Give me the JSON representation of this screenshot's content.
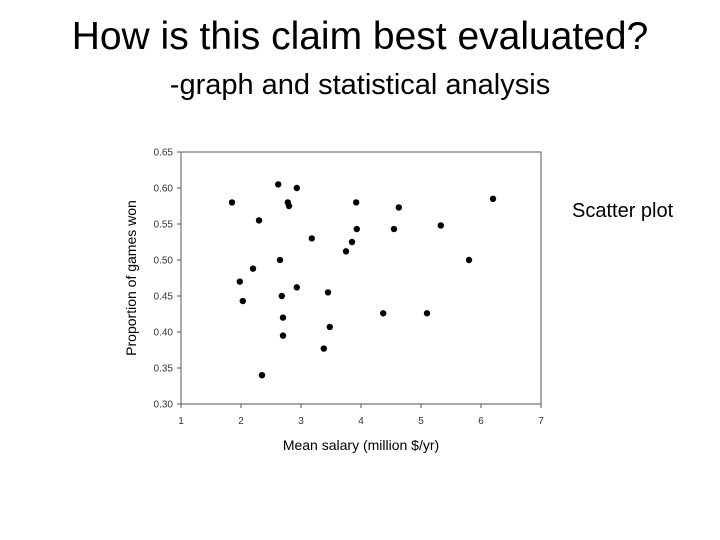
{
  "slide": {
    "title": "How is this claim best evaluated?",
    "subtitle": "-graph and statistical analysis",
    "note": "Scatter plot"
  },
  "chart_data": {
    "type": "scatter",
    "xlabel": "Mean salary (million $/yr)",
    "ylabel": "Proportion of games won",
    "xlim": [
      1,
      7
    ],
    "ylim": [
      0.3,
      0.65
    ],
    "xticks": [
      "1",
      "2",
      "3",
      "4",
      "5",
      "6",
      "7"
    ],
    "yticks": [
      "0.30",
      "0.35",
      "0.40",
      "0.45",
      "0.50",
      "0.55",
      "0.60",
      "0.65"
    ],
    "grid": false,
    "point_color": "#000000",
    "points": [
      {
        "x": 1.85,
        "y": 0.58
      },
      {
        "x": 1.98,
        "y": 0.47
      },
      {
        "x": 2.03,
        "y": 0.443
      },
      {
        "x": 2.2,
        "y": 0.488
      },
      {
        "x": 2.3,
        "y": 0.555
      },
      {
        "x": 2.35,
        "y": 0.34
      },
      {
        "x": 2.62,
        "y": 0.605
      },
      {
        "x": 2.65,
        "y": 0.5
      },
      {
        "x": 2.68,
        "y": 0.45
      },
      {
        "x": 2.7,
        "y": 0.42
      },
      {
        "x": 2.7,
        "y": 0.395
      },
      {
        "x": 2.78,
        "y": 0.58
      },
      {
        "x": 2.8,
        "y": 0.575
      },
      {
        "x": 2.93,
        "y": 0.6
      },
      {
        "x": 2.93,
        "y": 0.462
      },
      {
        "x": 3.18,
        "y": 0.53
      },
      {
        "x": 3.38,
        "y": 0.377
      },
      {
        "x": 3.45,
        "y": 0.455
      },
      {
        "x": 3.48,
        "y": 0.407
      },
      {
        "x": 3.75,
        "y": 0.512
      },
      {
        "x": 3.85,
        "y": 0.525
      },
      {
        "x": 3.92,
        "y": 0.58
      },
      {
        "x": 3.93,
        "y": 0.543
      },
      {
        "x": 4.37,
        "y": 0.426
      },
      {
        "x": 4.55,
        "y": 0.543
      },
      {
        "x": 4.63,
        "y": 0.573
      },
      {
        "x": 5.1,
        "y": 0.426
      },
      {
        "x": 5.33,
        "y": 0.548
      },
      {
        "x": 5.8,
        "y": 0.5
      },
      {
        "x": 6.2,
        "y": 0.585
      }
    ]
  }
}
